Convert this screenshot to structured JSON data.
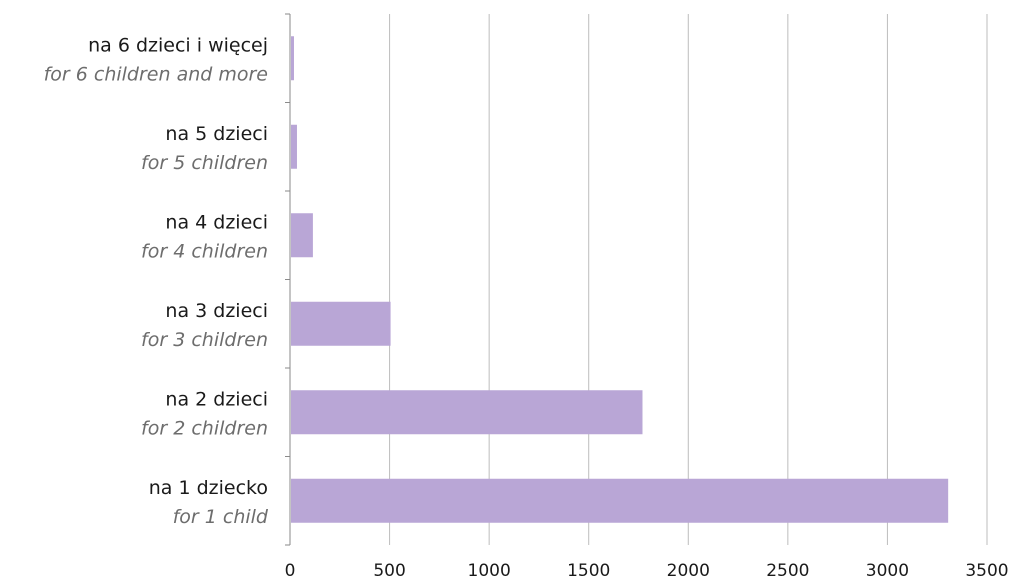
{
  "chart_data": {
    "type": "bar",
    "orientation": "horizontal",
    "categories": [
      {
        "pl": "na 1 dziecko",
        "en": "for 1 child"
      },
      {
        "pl": "na 2 dzieci",
        "en": "for 2 children"
      },
      {
        "pl": "na 3 dzieci",
        "en": "for 3 children"
      },
      {
        "pl": "na 4 dzieci",
        "en": "for 4 children"
      },
      {
        "pl": "na 5 dzieci",
        "en": "for 5 children"
      },
      {
        "pl": "na 6 dzieci i więcej",
        "en": "for 6 children and more"
      }
    ],
    "values": [
      3300,
      1765,
      500,
      110,
      30,
      15
    ],
    "xlim": [
      0,
      3500
    ],
    "xticks": [
      "0",
      "500",
      "1000",
      "1500",
      "2000",
      "2500",
      "3000",
      "3500"
    ],
    "grid": true,
    "bar_color": "#b9a6d6"
  }
}
